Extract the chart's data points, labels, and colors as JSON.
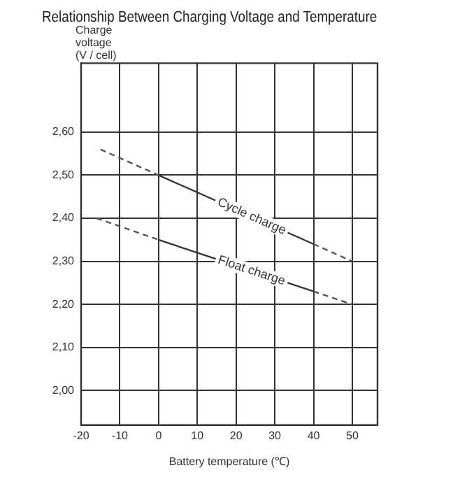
{
  "chart_data": {
    "type": "line",
    "title": "Relationship Between Charging Voltage and Temperature",
    "xlabel": "Battery temperature (℃)",
    "ylabel": "Charge\nvoltage\n(V / cell)",
    "series": [
      {
        "name": "Cycle charge",
        "color": "#333333",
        "x": [
          0,
          40
        ],
        "values": [
          2.5,
          2.34
        ],
        "line_style": "solid"
      },
      {
        "color": "#555555",
        "x": [
          -15,
          0
        ],
        "values": [
          2.56,
          2.5
        ],
        "line_style": "dashed"
      },
      {
        "color": "#555555",
        "x": [
          40,
          50
        ],
        "values": [
          2.34,
          2.3
        ],
        "line_style": "dashed"
      },
      {
        "name": "Float charge",
        "color": "#333333",
        "x": [
          0,
          40
        ],
        "values": [
          2.35,
          2.23
        ],
        "line_style": "solid"
      },
      {
        "color": "#555555",
        "x": [
          -16,
          0
        ],
        "values": [
          2.4,
          2.35
        ],
        "line_style": "dashed"
      },
      {
        "color": "#555555",
        "x": [
          40,
          50
        ],
        "values": [
          2.23,
          2.2
        ],
        "line_style": "dashed"
      }
    ],
    "xlim": [
      -20,
      56.5
    ],
    "xticks": [
      -20,
      -10,
      0,
      10,
      20,
      30,
      40,
      50
    ],
    "ylim": [
      1.92,
      2.76
    ],
    "yticks": [
      {
        "value": 2.0,
        "label": "2,00"
      },
      {
        "value": 2.1,
        "label": "2,10"
      },
      {
        "value": 2.2,
        "label": "2,20"
      },
      {
        "value": 2.3,
        "label": "2,30"
      },
      {
        "value": 2.4,
        "label": "2,40"
      },
      {
        "value": 2.5,
        "label": "2,50"
      },
      {
        "value": 2.6,
        "label": "2,60"
      }
    ],
    "grid": true,
    "legend": false,
    "marker": "none"
  }
}
